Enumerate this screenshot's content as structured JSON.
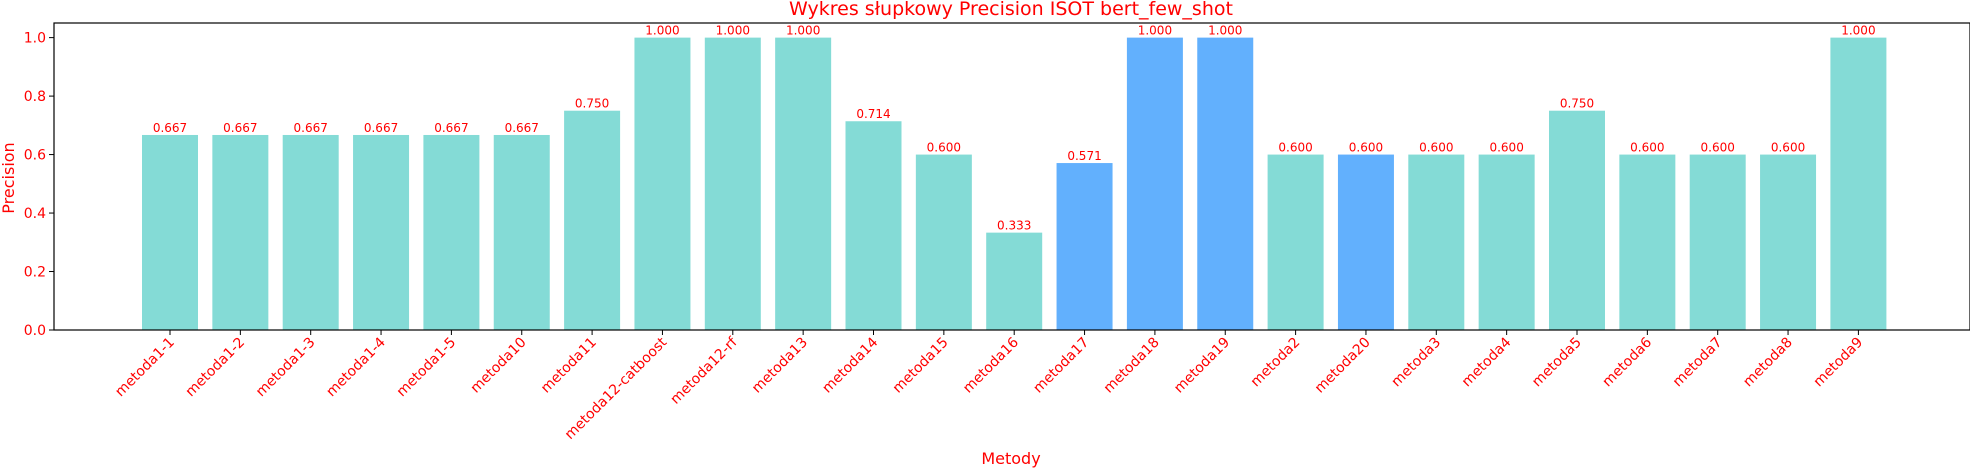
{
  "chart_data": {
    "type": "bar",
    "title": "Wykres słupkowy Precision ISOT bert_few_shot",
    "xlabel": "Metody",
    "ylabel": "Precision",
    "ylim": [
      0,
      1.05
    ],
    "yticks": [
      0.0,
      0.2,
      0.4,
      0.6,
      0.8,
      1.0
    ],
    "ytick_labels": [
      "0.0",
      "0.2",
      "0.4",
      "0.6",
      "0.8",
      "1.0"
    ],
    "grid": false,
    "categories": [
      "metoda1-1",
      "metoda1-2",
      "metoda1-3",
      "metoda1-4",
      "metoda1-5",
      "metoda10",
      "metoda11",
      "metoda12-catboost",
      "metoda12-rf",
      "metoda13",
      "metoda14",
      "metoda15",
      "metoda16",
      "metoda17",
      "metoda18",
      "metoda19",
      "metoda2",
      "metoda20",
      "metoda3",
      "metoda4",
      "metoda5",
      "metoda6",
      "metoda7",
      "metoda8",
      "metoda9"
    ],
    "values": [
      0.667,
      0.667,
      0.667,
      0.667,
      0.667,
      0.667,
      0.75,
      1.0,
      1.0,
      1.0,
      0.714,
      0.6,
      0.333,
      0.571,
      1.0,
      1.0,
      0.6,
      0.6,
      0.6,
      0.6,
      0.75,
      0.6,
      0.6,
      0.6,
      1.0
    ],
    "value_labels": [
      "0.667",
      "0.667",
      "0.667",
      "0.667",
      "0.667",
      "0.667",
      "0.750",
      "1.000",
      "1.000",
      "1.000",
      "0.714",
      "0.600",
      "0.333",
      "0.571",
      "1.000",
      "1.000",
      "0.600",
      "0.600",
      "0.600",
      "0.600",
      "0.750",
      "0.600",
      "0.600",
      "0.600",
      "1.000"
    ],
    "bar_colors": [
      "#84dbd6",
      "#84dbd6",
      "#84dbd6",
      "#84dbd6",
      "#84dbd6",
      "#84dbd6",
      "#84dbd6",
      "#84dbd6",
      "#84dbd6",
      "#84dbd6",
      "#84dbd6",
      "#84dbd6",
      "#84dbd6",
      "#62b0fd",
      "#62b0fd",
      "#62b0fd",
      "#84dbd6",
      "#62b0fd",
      "#84dbd6",
      "#84dbd6",
      "#84dbd6",
      "#84dbd6",
      "#84dbd6",
      "#84dbd6",
      "#84dbd6"
    ],
    "text_color": "#ff0000"
  }
}
